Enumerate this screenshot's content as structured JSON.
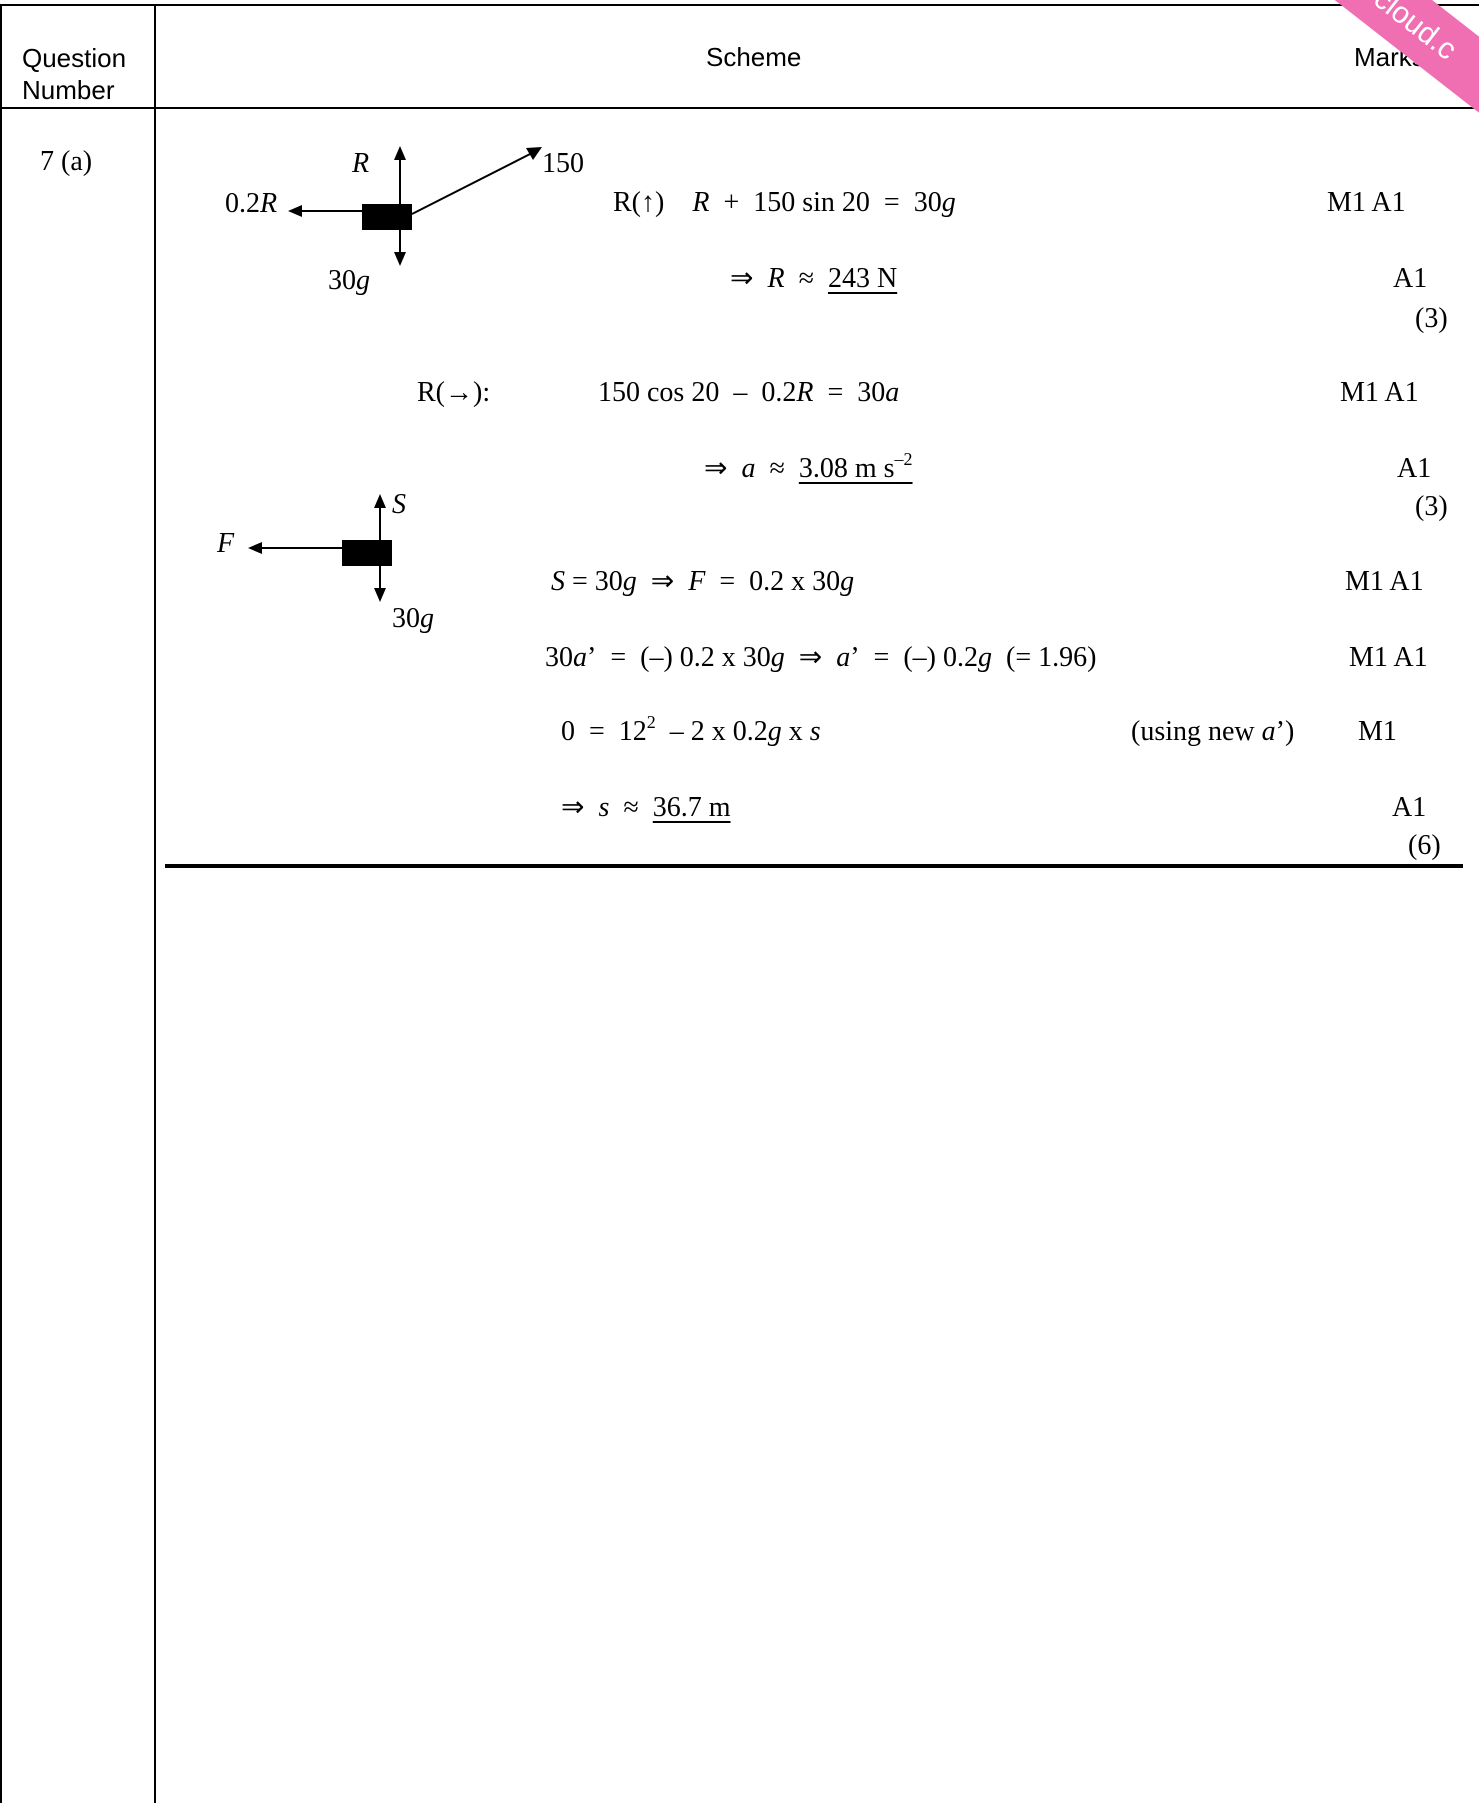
{
  "header": {
    "question_number": "Question Number",
    "scheme": "Scheme",
    "marks": "Marks"
  },
  "watermark": {
    "text": "scloud.c",
    "color": "#f06eb2"
  },
  "question": {
    "label": "7 (a)"
  },
  "diagram1": {
    "up": "R",
    "left": "0.2R",
    "diag": "150",
    "down": "30g"
  },
  "diagram2": {
    "up": "S",
    "left": "F",
    "down": "30g"
  },
  "lines": {
    "l1": {
      "marks": "M1 A1"
    },
    "l2": {
      "result": "243 N",
      "marks": "A1",
      "total": "(3)"
    },
    "l3": {
      "prefix": "R(→):",
      "marks": "M1 A1"
    },
    "l4": {
      "result": "3.08 m s",
      "marks": "A1",
      "total": "(3)"
    },
    "l5": {
      "marks": "M1 A1"
    },
    "l6": {
      "marks": "M1 A1"
    },
    "l7": {
      "note": "(using new a’)",
      "marks": "M1"
    },
    "l8": {
      "result": "36.7 m",
      "marks": "A1",
      "total": "(6)"
    }
  }
}
